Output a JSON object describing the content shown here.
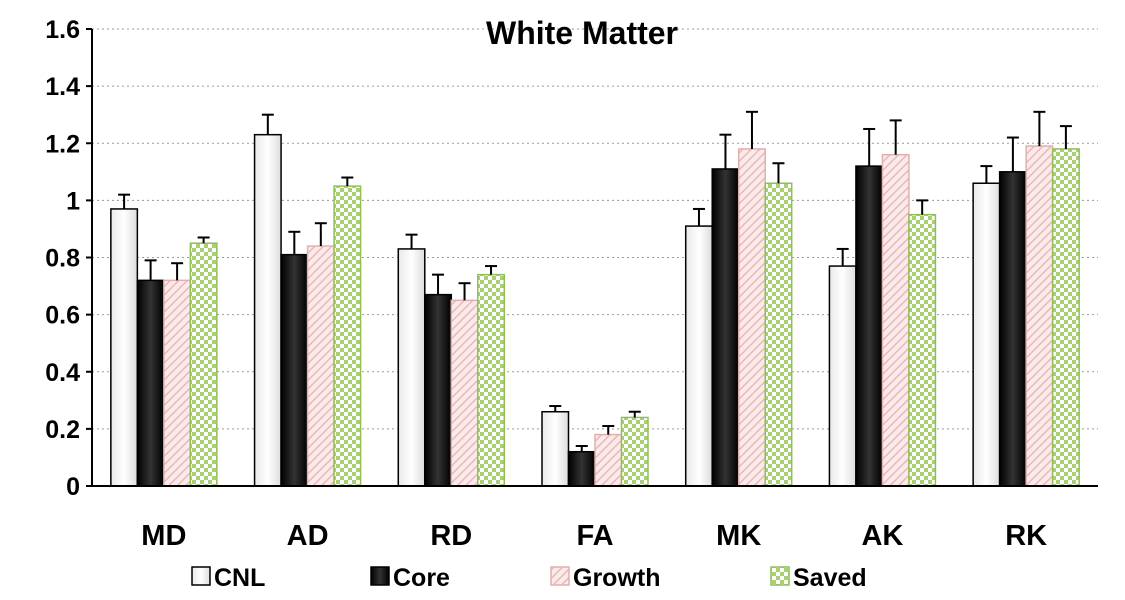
{
  "chart_data": {
    "type": "bar",
    "title": "White Matter",
    "xlabel": "",
    "ylabel": "",
    "ylim": [
      0,
      1.6
    ],
    "yticks": [
      "0",
      "0.2",
      "0.4",
      "0.6",
      "0.8",
      "1",
      "1.2",
      "1.4",
      "1.6"
    ],
    "ytick_values": [
      0,
      0.2,
      0.4,
      0.6,
      0.8,
      1.0,
      1.2,
      1.4,
      1.6
    ],
    "grid": true,
    "legend_position": "bottom",
    "categories": [
      "MD",
      "AD",
      "RD",
      "FA",
      "MK",
      "AK",
      "RK"
    ],
    "series": [
      {
        "name": "CNL",
        "values": [
          0.97,
          1.23,
          0.83,
          0.26,
          0.91,
          0.77,
          1.06
        ],
        "errors": [
          0.05,
          0.07,
          0.05,
          0.02,
          0.06,
          0.06,
          0.06
        ],
        "color": "#ffffff",
        "pattern": "solid"
      },
      {
        "name": "Core",
        "values": [
          0.72,
          0.81,
          0.67,
          0.12,
          1.11,
          1.12,
          1.1
        ],
        "errors": [
          0.07,
          0.08,
          0.07,
          0.02,
          0.12,
          0.13,
          0.12
        ],
        "color": "#111111",
        "pattern": "solid"
      },
      {
        "name": "Growth",
        "values": [
          0.72,
          0.84,
          0.65,
          0.18,
          1.18,
          1.16,
          1.19
        ],
        "errors": [
          0.06,
          0.08,
          0.06,
          0.03,
          0.13,
          0.12,
          0.12
        ],
        "color": "#f2cccc",
        "pattern": "hatch"
      },
      {
        "name": "Saved",
        "values": [
          0.85,
          1.05,
          0.74,
          0.24,
          1.06,
          0.95,
          1.18
        ],
        "errors": [
          0.02,
          0.03,
          0.03,
          0.02,
          0.07,
          0.05,
          0.08
        ],
        "color": "#a8cf72",
        "pattern": "checker"
      }
    ]
  }
}
